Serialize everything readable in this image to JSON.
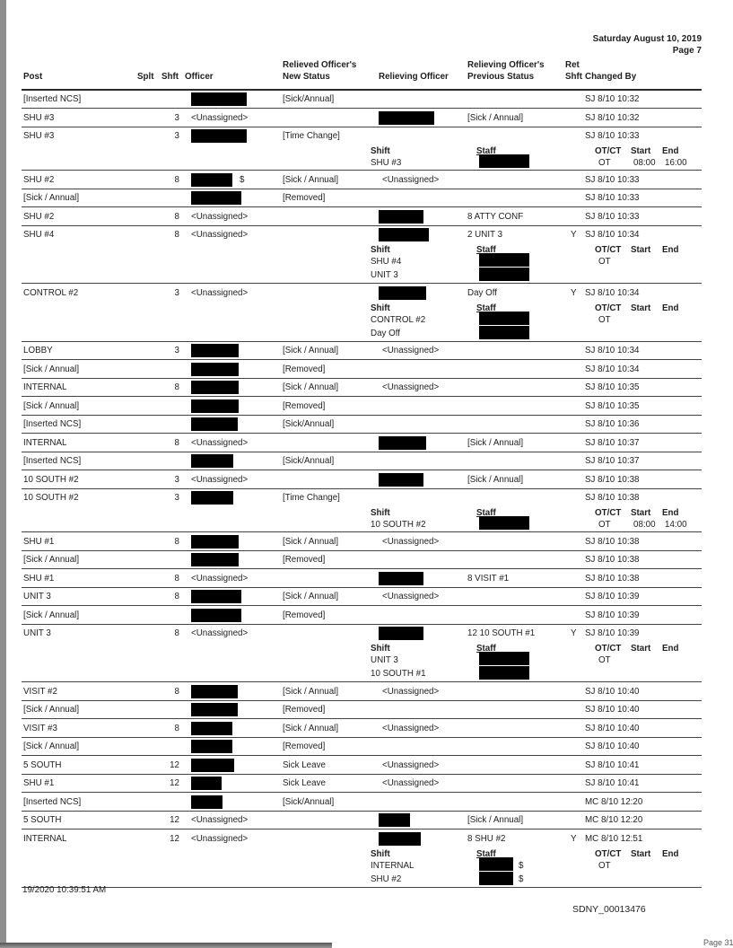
{
  "header": {
    "date": "Saturday August 10, 2019",
    "page": "Page 7",
    "columns": {
      "post": "Post",
      "splt": "Splt",
      "shft": "Shft",
      "officer": "Officer",
      "new_status_1": "Relieved Officer's",
      "new_status_2": "New Status",
      "relieving": "Relieving Officer",
      "prev_status_1": "Relieving Officer's",
      "prev_status_2": "Previous  Status",
      "ret_1": "Ret",
      "ret_2": "Shft",
      "changed_by": "Changed By"
    }
  },
  "detail_labels": {
    "shift": "Shift",
    "staff": "Staff",
    "otct": "OT/CT",
    "start": "Start",
    "end": "End"
  },
  "rows": [
    {
      "post": "[Inserted NCS]",
      "shft": "",
      "officer": "",
      "officer_redacted": true,
      "new_status": "[Sick/Annual]",
      "relieving": "",
      "prev_status": "",
      "ret": "",
      "changed_by": "SJ 8/10 10:32"
    },
    {
      "post": "SHU #3",
      "shft": "3",
      "officer": "<Unassigned>",
      "new_status": "",
      "relieving": "",
      "relieving_redacted": true,
      "prev_status": "[Sick / Annual]",
      "ret": "",
      "changed_by": "SJ 8/10 10:32"
    },
    {
      "post": "SHU #3",
      "shft": "3",
      "officer": "",
      "officer_redacted": true,
      "new_status": "[Time Change]",
      "relieving": "",
      "prev_status": "",
      "ret": "",
      "changed_by": "SJ 8/10 10:33",
      "detail": {
        "shifts": [
          "SHU #3"
        ],
        "staff_redacted": 1,
        "staff_suffix": "",
        "otct": "OT",
        "start": "08:00",
        "end": "16:00"
      }
    },
    {
      "post": "SHU #2",
      "shft": "8",
      "officer": "",
      "officer_redacted": true,
      "officer_suffix": "$",
      "new_status": "[Sick / Annual]",
      "relieving": "<Unassigned>",
      "prev_status": "",
      "ret": "",
      "changed_by": "SJ 8/10 10:33"
    },
    {
      "post": "[Sick / Annual]",
      "shft": "",
      "officer": "",
      "officer_redacted": true,
      "new_status": "[Removed]",
      "relieving": "",
      "prev_status": "",
      "ret": "",
      "changed_by": "SJ 8/10 10:33"
    },
    {
      "post": "SHU #2",
      "shft": "8",
      "officer": "<Unassigned>",
      "new_status": "",
      "relieving": "",
      "relieving_redacted": true,
      "prev_status": "8 ATTY CONF",
      "ret": "",
      "changed_by": "SJ 8/10 10:33"
    },
    {
      "post": "SHU #4",
      "shft": "8",
      "officer": "<Unassigned>",
      "new_status": "",
      "relieving": "",
      "relieving_redacted": true,
      "prev_status": "2 UNIT 3",
      "ret": "Y",
      "changed_by": "SJ 8/10 10:34",
      "detail": {
        "shifts": [
          "SHU #4",
          "UNIT 3"
        ],
        "staff_redacted": 2,
        "staff_suffix": "",
        "otct": "OT",
        "start": "",
        "end": ""
      }
    },
    {
      "post": "CONTROL #2",
      "shft": "3",
      "officer": "<Unassigned>",
      "new_status": "",
      "relieving": "",
      "relieving_redacted": true,
      "prev_status": "Day Off",
      "ret": "Y",
      "changed_by": "SJ 8/10 10:34",
      "detail": {
        "shifts": [
          "CONTROL #2",
          "Day Off"
        ],
        "staff_redacted": 2,
        "staff_suffix": "",
        "otct": "OT",
        "start": "",
        "end": ""
      }
    },
    {
      "post": "LOBBY",
      "shft": "3",
      "officer": "",
      "officer_redacted": true,
      "new_status": "[Sick / Annual]",
      "relieving": "<Unassigned>",
      "prev_status": "",
      "ret": "",
      "changed_by": "SJ 8/10 10:34"
    },
    {
      "post": "[Sick / Annual]",
      "shft": "",
      "officer": "",
      "officer_redacted": true,
      "new_status": "[Removed]",
      "relieving": "",
      "prev_status": "",
      "ret": "",
      "changed_by": "SJ 8/10 10:34"
    },
    {
      "post": "INTERNAL",
      "shft": "8",
      "officer": "",
      "officer_redacted": true,
      "new_status": "[Sick / Annual]",
      "relieving": "<Unassigned>",
      "prev_status": "",
      "ret": "",
      "changed_by": "SJ 8/10 10:35"
    },
    {
      "post": "[Sick / Annual]",
      "shft": "",
      "officer": "",
      "officer_redacted": true,
      "new_status": "[Removed]",
      "relieving": "",
      "prev_status": "",
      "ret": "",
      "changed_by": "SJ 8/10 10:35"
    },
    {
      "post": "[Inserted NCS]",
      "shft": "",
      "officer": "",
      "officer_redacted": true,
      "new_status": "[Sick/Annual]",
      "relieving": "",
      "prev_status": "",
      "ret": "",
      "changed_by": "SJ 8/10 10:36"
    },
    {
      "post": "INTERNAL",
      "shft": "8",
      "officer": "<Unassigned>",
      "new_status": "",
      "relieving": "",
      "relieving_redacted": true,
      "prev_status": "[Sick / Annual]",
      "ret": "",
      "changed_by": "SJ 8/10 10:37"
    },
    {
      "post": "[Inserted NCS]",
      "shft": "",
      "officer": "",
      "officer_redacted": true,
      "new_status": "[Sick/Annual]",
      "relieving": "",
      "prev_status": "",
      "ret": "",
      "changed_by": "SJ 8/10 10:37"
    },
    {
      "post": "10 SOUTH #2",
      "shft": "3",
      "officer": "<Unassigned>",
      "new_status": "",
      "relieving": "",
      "relieving_redacted": true,
      "prev_status": "[Sick / Annual]",
      "ret": "",
      "changed_by": "SJ 8/10 10:38"
    },
    {
      "post": "10 SOUTH #2",
      "shft": "3",
      "officer": "",
      "officer_redacted": true,
      "new_status": "[Time Change]",
      "relieving": "",
      "prev_status": "",
      "ret": "",
      "changed_by": "SJ 8/10 10:38",
      "detail": {
        "shifts": [
          "10 SOUTH #2"
        ],
        "staff_redacted": 1,
        "staff_suffix": "",
        "otct": "OT",
        "start": "08:00",
        "end": "14:00"
      }
    },
    {
      "post": "SHU #1",
      "shft": "8",
      "officer": "",
      "officer_redacted": true,
      "new_status": "[Sick / Annual]",
      "relieving": "<Unassigned>",
      "prev_status": "",
      "ret": "",
      "changed_by": "SJ 8/10 10:38"
    },
    {
      "post": "[Sick / Annual]",
      "shft": "",
      "officer": "",
      "officer_redacted": true,
      "new_status": "[Removed]",
      "relieving": "",
      "prev_status": "",
      "ret": "",
      "changed_by": "SJ 8/10 10:38"
    },
    {
      "post": "SHU #1",
      "shft": "8",
      "officer": "<Unassigned>",
      "new_status": "",
      "relieving": "",
      "relieving_redacted": true,
      "prev_status": "8 VISIT #1",
      "ret": "",
      "changed_by": "SJ 8/10 10:38"
    },
    {
      "post": "UNIT 3",
      "shft": "8",
      "officer": "",
      "officer_redacted": true,
      "new_status": "[Sick / Annual]",
      "relieving": "<Unassigned>",
      "prev_status": "",
      "ret": "",
      "changed_by": "SJ 8/10 10:39"
    },
    {
      "post": "[Sick / Annual]",
      "shft": "",
      "officer": "",
      "officer_redacted": true,
      "new_status": "[Removed]",
      "relieving": "",
      "prev_status": "",
      "ret": "",
      "changed_by": "SJ 8/10 10:39"
    },
    {
      "post": "UNIT 3",
      "shft": "8",
      "officer": "<Unassigned>",
      "new_status": "",
      "relieving": "",
      "relieving_redacted": true,
      "prev_status": "12 10 SOUTH #1",
      "ret": "Y",
      "changed_by": "SJ 8/10 10:39",
      "detail": {
        "shifts": [
          "UNIT 3",
          "10 SOUTH #1"
        ],
        "staff_redacted": 2,
        "staff_suffix": "",
        "otct": "OT",
        "start": "",
        "end": ""
      }
    },
    {
      "post": "VISIT #2",
      "shft": "8",
      "officer": "",
      "officer_redacted": true,
      "new_status": "[Sick / Annual]",
      "relieving": "<Unassigned>",
      "prev_status": "",
      "ret": "",
      "changed_by": "SJ 8/10 10:40"
    },
    {
      "post": "[Sick / Annual]",
      "shft": "",
      "officer": "",
      "officer_redacted": true,
      "new_status": "[Removed]",
      "relieving": "",
      "prev_status": "",
      "ret": "",
      "changed_by": "SJ 8/10 10:40"
    },
    {
      "post": "VISIT #3",
      "shft": "8",
      "officer": "",
      "officer_redacted": true,
      "new_status": "[Sick / Annual]",
      "relieving": "<Unassigned>",
      "prev_status": "",
      "ret": "",
      "changed_by": "SJ 8/10 10:40"
    },
    {
      "post": "[Sick / Annual]",
      "shft": "",
      "officer": "",
      "officer_redacted": true,
      "new_status": "[Removed]",
      "relieving": "",
      "prev_status": "",
      "ret": "",
      "changed_by": "SJ 8/10 10:40"
    },
    {
      "post": "5 SOUTH",
      "shft": "12",
      "officer": "",
      "officer_redacted": true,
      "new_status": "Sick Leave",
      "relieving": "<Unassigned>",
      "prev_status": "",
      "ret": "",
      "changed_by": "SJ 8/10 10:41"
    },
    {
      "post": "SHU #1",
      "shft": "12",
      "officer": "",
      "officer_redacted": true,
      "new_status": "Sick Leave",
      "relieving": "<Unassigned>",
      "prev_status": "",
      "ret": "",
      "changed_by": "SJ 8/10 10:41"
    },
    {
      "post": "[Inserted NCS]",
      "shft": "",
      "officer": "",
      "officer_redacted": true,
      "new_status": "[Sick/Annual]",
      "relieving": "",
      "prev_status": "",
      "ret": "",
      "changed_by": "MC 8/10 12:20"
    },
    {
      "post": "5 SOUTH",
      "shft": "12",
      "officer": "<Unassigned>",
      "new_status": "",
      "relieving": "",
      "relieving_redacted": true,
      "prev_status": "[Sick / Annual]",
      "ret": "",
      "changed_by": "MC 8/10 12:20"
    },
    {
      "post": "INTERNAL",
      "shft": "12",
      "officer": "<Unassigned>",
      "new_status": "",
      "relieving": "",
      "relieving_redacted": true,
      "prev_status": "8 SHU #2",
      "ret": "Y",
      "changed_by": "MC 8/10 12:51",
      "detail": {
        "shifts": [
          "INTERNAL",
          "SHU #2"
        ],
        "staff_redacted": 2,
        "staff_suffix": "$",
        "otct": "OT",
        "start": "",
        "end": ""
      }
    }
  ],
  "footer": {
    "printed": "19/2020 10:39:51 AM",
    "bates": "SDNY_00013476",
    "scan_page": "Page 31"
  }
}
